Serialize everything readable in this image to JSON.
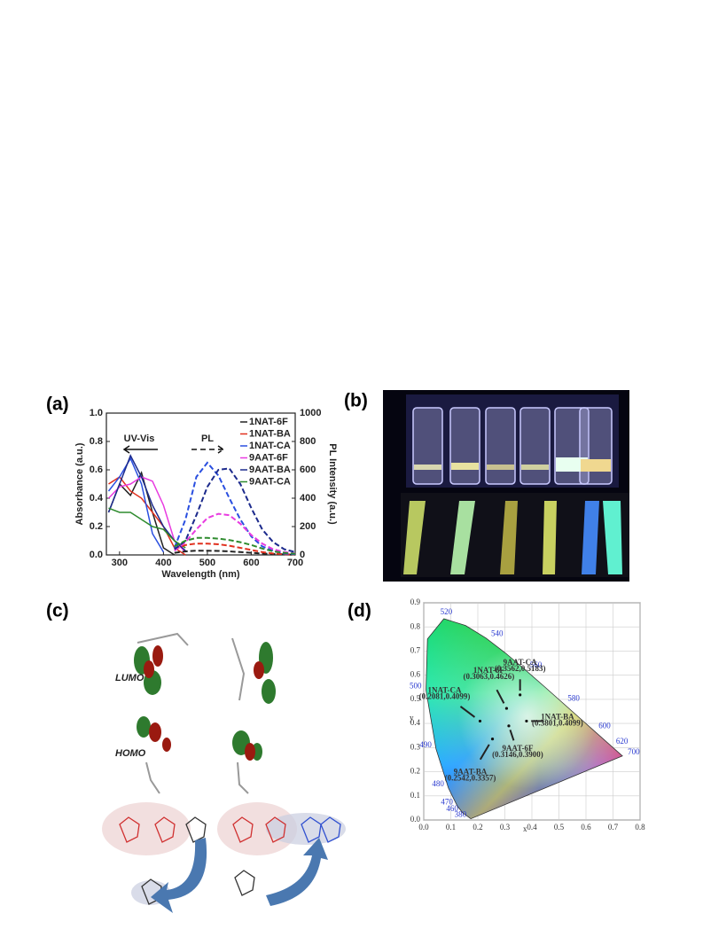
{
  "panel_labels": [
    "(a)",
    "(b)",
    "(c)",
    "(d)"
  ],
  "panel_c": {
    "lumo_label": "LUMO",
    "homo_label": "HOMO"
  },
  "chart_data": [
    {
      "type": "line",
      "xlabel": "Wavelength (nm)",
      "ylabel": "Absorbance (a.u.)",
      "y2label": "PL Intensity (a.u.)",
      "annotations": [
        "UV-Vis",
        "PL"
      ],
      "x": [
        275,
        300,
        325,
        350,
        375,
        400,
        425,
        450,
        475,
        500,
        525,
        550,
        575,
        600,
        625,
        650,
        675,
        700
      ],
      "xlim": [
        270,
        700
      ],
      "xticks": [
        300,
        400,
        500,
        600,
        700
      ],
      "ylim": [
        0,
        1
      ],
      "yticks": [
        {
          "value": 0,
          "label": "0.0"
        },
        {
          "value": 0.2,
          "label": "0.2"
        },
        {
          "value": 0.4,
          "label": "0.4"
        },
        {
          "value": 0.6,
          "label": "0.6"
        },
        {
          "value": 0.8,
          "label": "0.8"
        },
        {
          "value": 1,
          "label": "1.0"
        }
      ],
      "y2lim": [
        0,
        1000
      ],
      "y2ticks": [
        0,
        200,
        400,
        600,
        800,
        1000
      ],
      "legend": "upper right",
      "series": [
        {
          "name": "1NAT-6F",
          "color": "#222222",
          "values": [
            0.3,
            0.5,
            0.42,
            0.58,
            0.3,
            0.05,
            0,
            null,
            null,
            null,
            null,
            null,
            null,
            null,
            null,
            null,
            null,
            null
          ]
        },
        {
          "name": "1NAT-BA",
          "color": "#e0301e",
          "values": [
            0.5,
            0.55,
            0.45,
            0.4,
            0.3,
            0.2,
            0.05,
            0,
            null,
            null,
            null,
            null,
            null,
            null,
            null,
            null,
            null,
            null
          ]
        },
        {
          "name": "1NAT-CA",
          "color": "#2a4fe0",
          "values": [
            0.45,
            0.55,
            0.68,
            0.5,
            0.15,
            0.02,
            null,
            null,
            null,
            null,
            null,
            null,
            null,
            null,
            null,
            null,
            null,
            null
          ]
        },
        {
          "name": "9AAT-6F",
          "color": "#e83be0",
          "values": [
            0.4,
            0.48,
            0.5,
            0.55,
            0.52,
            0.35,
            0.1,
            0.02,
            null,
            null,
            null,
            null,
            null,
            null,
            null,
            null,
            null,
            null
          ]
        },
        {
          "name": "9AAT-BA",
          "color": "#1c2a8c",
          "values": [
            0.3,
            0.5,
            0.7,
            0.55,
            0.35,
            0.2,
            0.1,
            0.03,
            null,
            null,
            null,
            null,
            null,
            null,
            null,
            null,
            null,
            null
          ]
        },
        {
          "name": "9AAT-CA",
          "color": "#2e8b2e",
          "values": [
            0.33,
            0.3,
            0.3,
            0.25,
            0.2,
            0.18,
            0.1,
            0.05,
            null,
            null,
            null,
            null,
            null,
            null,
            null,
            null,
            null,
            null
          ]
        },
        {
          "axis": "y2",
          "dashed": true,
          "color": "#222222",
          "values": [
            null,
            null,
            null,
            null,
            null,
            null,
            15,
            25,
            30,
            30,
            28,
            25,
            20,
            15,
            10,
            6,
            4,
            2
          ]
        },
        {
          "axis": "y2",
          "dashed": true,
          "color": "#e0301e",
          "values": [
            null,
            null,
            null,
            null,
            null,
            null,
            40,
            70,
            80,
            80,
            75,
            65,
            50,
            35,
            20,
            10,
            5,
            3
          ]
        },
        {
          "axis": "y2",
          "dashed": true,
          "color": "#2a4fe0",
          "values": [
            null,
            null,
            null,
            null,
            null,
            null,
            50,
            250,
            550,
            650,
            560,
            400,
            250,
            130,
            60,
            30,
            10,
            5
          ]
        },
        {
          "axis": "y2",
          "dashed": true,
          "color": "#e83be0",
          "values": [
            null,
            null,
            null,
            null,
            null,
            null,
            30,
            90,
            180,
            260,
            290,
            280,
            220,
            140,
            80,
            40,
            20,
            10
          ]
        },
        {
          "axis": "y2",
          "dashed": true,
          "color": "#1c2a8c",
          "values": [
            null,
            null,
            null,
            null,
            null,
            null,
            40,
            100,
            280,
            480,
            600,
            610,
            500,
            330,
            180,
            90,
            40,
            20
          ]
        },
        {
          "axis": "y2",
          "dashed": true,
          "color": "#2e8b2e",
          "values": [
            null,
            null,
            null,
            null,
            null,
            null,
            60,
            100,
            120,
            120,
            115,
            105,
            90,
            70,
            45,
            25,
            15,
            8
          ]
        }
      ]
    },
    {
      "type": "scatter",
      "xlabel": "x",
      "ylabel": "y",
      "xlim": [
        0,
        0.8
      ],
      "xticks": [
        {
          "value": 0,
          "label": "0.0"
        },
        {
          "value": 0.1,
          "label": "0.1"
        },
        {
          "value": 0.2,
          "label": "0.2"
        },
        {
          "value": 0.3,
          "label": "0.3"
        },
        {
          "value": 0.4,
          "label": "0.4"
        },
        {
          "value": 0.5,
          "label": "0.5"
        },
        {
          "value": 0.6,
          "label": "0.6"
        },
        {
          "value": 0.7,
          "label": "0.7"
        },
        {
          "value": 0.8,
          "label": "0.8"
        }
      ],
      "ylim": [
        0,
        0.9
      ],
      "yticks": [
        {
          "value": 0,
          "label": "0.0"
        },
        {
          "value": 0.1,
          "label": "0.1"
        },
        {
          "value": 0.2,
          "label": "0.2"
        },
        {
          "value": 0.3,
          "label": "0.3"
        },
        {
          "value": 0.4,
          "label": "0.4"
        },
        {
          "value": 0.5,
          "label": "0.5"
        },
        {
          "value": 0.6,
          "label": "0.6"
        },
        {
          "value": 0.7,
          "label": "0.7"
        },
        {
          "value": 0.8,
          "label": "0.8"
        },
        {
          "value": 0.9,
          "label": "0.9"
        }
      ],
      "grid": true,
      "locus_labels": [
        520,
        540,
        560,
        580,
        600,
        620,
        700,
        500,
        490,
        480,
        470,
        460,
        380
      ],
      "points": [
        {
          "name": "9AAT-CA",
          "label": "(0.3562,0.5183)",
          "x": 0.3562,
          "y": 0.5183
        },
        {
          "name": "1NAT-6F",
          "label": "(0.3063,0.4626)",
          "x": 0.3063,
          "y": 0.4626
        },
        {
          "name": "1NAT-CA",
          "label": "(0.2081,0.4099)",
          "x": 0.2081,
          "y": 0.4099
        },
        {
          "name": "1NAT-BA",
          "label": "(0.3801,0.4099)",
          "x": 0.3801,
          "y": 0.4099
        },
        {
          "name": "9AAT-6F",
          "label": "(0.3146,0.3900)",
          "x": 0.3146,
          "y": 0.39
        },
        {
          "name": "9AAT-BA",
          "label": "(0.2542,0.3357)",
          "x": 0.2542,
          "y": 0.3357
        }
      ]
    }
  ]
}
